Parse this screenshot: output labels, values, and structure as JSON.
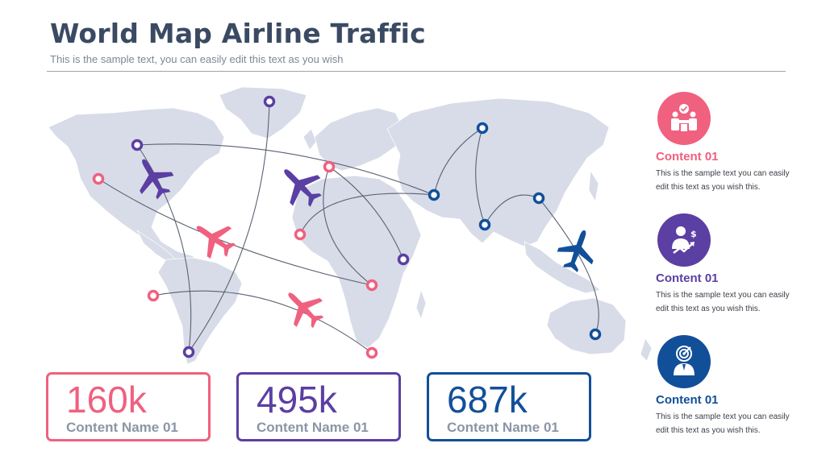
{
  "header": {
    "title": "World Map Airline Traffic",
    "subtitle": "This is the sample text, you can easily edit this text as you wish"
  },
  "colors": {
    "pink": "#f0607f",
    "purple": "#5b3fa3",
    "blue": "#124f99",
    "map": "#d8dce8",
    "route": "#5a6270"
  },
  "stats": [
    {
      "value": "160k",
      "label": "Content Name 01",
      "color": "#f0607f"
    },
    {
      "value": "495k",
      "label": "Content Name 01",
      "color": "#5b3fa3"
    },
    {
      "value": "687k",
      "label": "Content Name 01",
      "color": "#124f99"
    }
  ],
  "side": [
    {
      "title": "Content 01",
      "text": "This is the sample text you can easily edit this text as you wish this.",
      "color": "#f0607f",
      "icon": "team-handshake-icon"
    },
    {
      "title": "Content 01",
      "text": "This is the sample text you can easily edit this text as you wish this.",
      "color": "#5b3fa3",
      "icon": "businessman-growth-icon"
    },
    {
      "title": "Content 01",
      "text": "This is the sample text you can easily edit this text as you wish this.",
      "color": "#124f99",
      "icon": "target-person-icon"
    }
  ]
}
